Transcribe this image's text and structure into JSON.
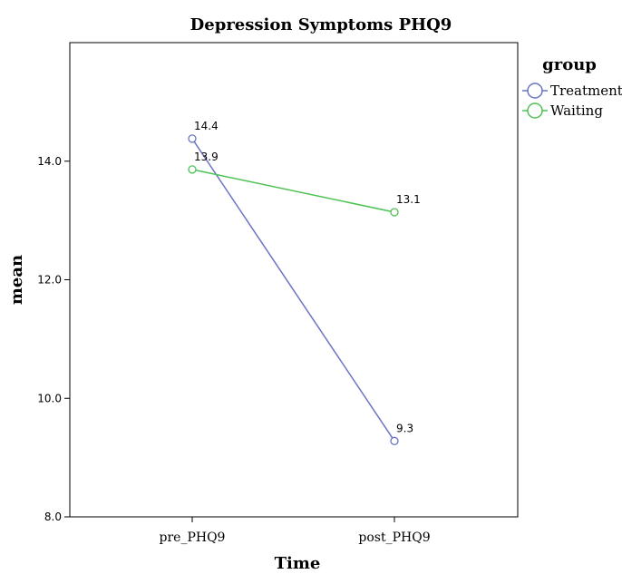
{
  "chart_data": {
    "type": "line",
    "title": "Depression Symptoms PHQ9",
    "xlabel": "Time",
    "ylabel": "mean",
    "categories": [
      "pre_PHQ9",
      "post_PHQ9"
    ],
    "ylim": [
      8.0,
      16.0
    ],
    "yticks": [
      8.0,
      10.0,
      12.0,
      14.0
    ],
    "ytick_labels": [
      "8.0",
      "10.0",
      "12.0",
      "14.0"
    ],
    "legend": {
      "title": "group",
      "placement": "right"
    },
    "series": [
      {
        "name": "Treatment",
        "color": "#6a73c7",
        "values": [
          14.38,
          9.28
        ],
        "labels": [
          "14.4",
          "9.3"
        ]
      },
      {
        "name": "Waiting",
        "color": "#4cc254",
        "values": [
          13.86,
          13.14
        ],
        "labels": [
          "13.9",
          "13.1"
        ]
      }
    ]
  }
}
